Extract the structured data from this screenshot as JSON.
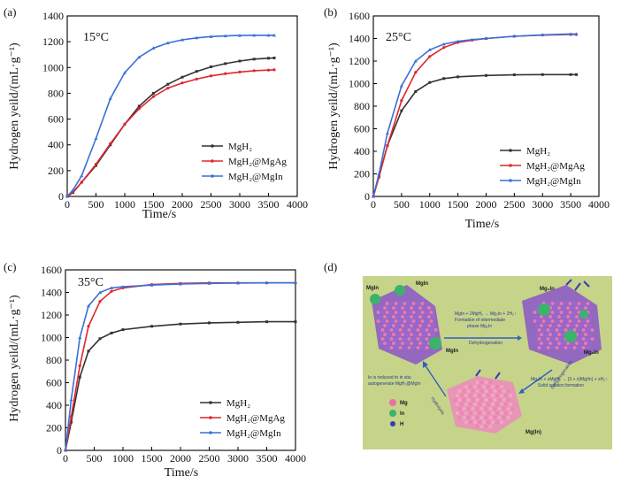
{
  "colors": {
    "mgh2": "#333333",
    "mgag": "#e0262c",
    "mgin": "#3a6fd8",
    "diagram_bg": "#c6d48a"
  },
  "chart_data": [
    {
      "type": "line",
      "panel": "(a)",
      "annotation": "15°C",
      "xlabel": "Time/s",
      "ylabel": "Hydrogen yeild/(mL·g⁻¹)",
      "xlim": [
        0,
        4000
      ],
      "ylim": [
        0,
        1400
      ],
      "xticks": [
        "0",
        "500",
        "1000",
        "1500",
        "2000",
        "2500",
        "3000",
        "3500",
        "4000"
      ],
      "yticks": [
        "0",
        "200",
        "400",
        "600",
        "800",
        "1000",
        "1200",
        "1400"
      ],
      "legend_position": "right-middle",
      "series": [
        {
          "name": "MgH₂",
          "color_key": "mgh2",
          "marker": "square",
          "x": [
            0,
            100,
            250,
            500,
            750,
            1000,
            1250,
            1500,
            1750,
            2000,
            2250,
            2500,
            2750,
            3000,
            3250,
            3500,
            3600
          ],
          "y": [
            0,
            30,
            110,
            240,
            400,
            560,
            700,
            800,
            870,
            925,
            970,
            1005,
            1030,
            1050,
            1065,
            1072,
            1074
          ]
        },
        {
          "name": "MgH₂@MgAg",
          "color_key": "mgag",
          "marker": "circle",
          "x": [
            0,
            100,
            250,
            500,
            750,
            1000,
            1250,
            1500,
            1750,
            2000,
            2250,
            2500,
            2750,
            3000,
            3250,
            3500,
            3600
          ],
          "y": [
            0,
            35,
            110,
            250,
            410,
            560,
            680,
            775,
            840,
            880,
            910,
            935,
            952,
            965,
            975,
            980,
            982
          ]
        },
        {
          "name": "MgH₂@MgIn",
          "color_key": "mgin",
          "marker": "triangle",
          "x": [
            0,
            100,
            250,
            500,
            750,
            1000,
            1250,
            1500,
            1750,
            2000,
            2250,
            2500,
            2750,
            3000,
            3250,
            3500,
            3600
          ],
          "y": [
            0,
            50,
            160,
            450,
            760,
            960,
            1080,
            1150,
            1190,
            1215,
            1230,
            1240,
            1245,
            1248,
            1250,
            1250,
            1250
          ]
        }
      ]
    },
    {
      "type": "line",
      "panel": "(b)",
      "annotation": "25°C",
      "xlabel": "Time/s",
      "ylabel": "Hydrogen yeild/(mL·g⁻¹)",
      "xlim": [
        0,
        4000
      ],
      "ylim": [
        0,
        1600
      ],
      "xticks": [
        "0",
        "500",
        "1000",
        "1500",
        "2000",
        "2500",
        "3000",
        "3500",
        "4000"
      ],
      "yticks": [
        "0",
        "200",
        "400",
        "600",
        "800",
        "1000",
        "1200",
        "1400",
        "1600"
      ],
      "legend_position": "right-middle",
      "series": [
        {
          "name": "MgH₂",
          "color_key": "mgh2",
          "marker": "square",
          "x": [
            0,
            100,
            250,
            500,
            750,
            1000,
            1250,
            1500,
            2000,
            2500,
            3000,
            3500,
            3600
          ],
          "y": [
            0,
            180,
            450,
            760,
            930,
            1010,
            1045,
            1060,
            1072,
            1078,
            1080,
            1080,
            1080
          ]
        },
        {
          "name": "MgH₂@MgAg",
          "color_key": "mgag",
          "marker": "circle",
          "x": [
            0,
            100,
            250,
            500,
            750,
            1000,
            1250,
            1500,
            1750,
            2000,
            2500,
            3000,
            3500,
            3600
          ],
          "y": [
            0,
            170,
            450,
            850,
            1100,
            1240,
            1320,
            1365,
            1385,
            1400,
            1420,
            1430,
            1435,
            1435
          ]
        },
        {
          "name": "MgH₂@MgIn",
          "color_key": "mgin",
          "marker": "triangle",
          "x": [
            0,
            100,
            250,
            500,
            750,
            1000,
            1250,
            1500,
            1750,
            2000,
            2500,
            3000,
            3500,
            3600
          ],
          "y": [
            0,
            200,
            560,
            980,
            1200,
            1300,
            1350,
            1375,
            1390,
            1400,
            1420,
            1432,
            1440,
            1440
          ]
        }
      ]
    },
    {
      "type": "line",
      "panel": "(c)",
      "annotation": "35°C",
      "xlabel": "Time/s",
      "ylabel": "Hydrogen yeild/(mL·g⁻¹)",
      "xlim": [
        0,
        4000
      ],
      "ylim": [
        0,
        1600
      ],
      "xticks": [
        "0",
        "500",
        "1000",
        "1500",
        "2000",
        "2500",
        "3000",
        "3500",
        "4000"
      ],
      "yticks": [
        "0",
        "200",
        "400",
        "600",
        "800",
        "1000",
        "1200",
        "1400",
        "1600"
      ],
      "legend_position": "right-bottom",
      "series": [
        {
          "name": "MgH₂",
          "color_key": "mgh2",
          "marker": "square",
          "x": [
            0,
            100,
            250,
            400,
            600,
            800,
            1000,
            1500,
            2000,
            2500,
            3000,
            3500,
            4000
          ],
          "y": [
            0,
            250,
            650,
            880,
            990,
            1040,
            1070,
            1100,
            1120,
            1130,
            1135,
            1140,
            1140
          ]
        },
        {
          "name": "MgH₂@MgAg",
          "color_key": "mgag",
          "marker": "circle",
          "x": [
            0,
            100,
            250,
            400,
            600,
            800,
            1000,
            1500,
            2000,
            2500,
            3000,
            3500,
            4000
          ],
          "y": [
            0,
            300,
            750,
            1100,
            1320,
            1410,
            1440,
            1470,
            1480,
            1485,
            1485,
            1485,
            1485
          ]
        },
        {
          "name": "MgH₂@MgIn",
          "color_key": "mgin",
          "marker": "triangle",
          "x": [
            0,
            100,
            250,
            400,
            600,
            800,
            1000,
            1500,
            2000,
            2500,
            3000,
            3500,
            4000
          ],
          "y": [
            0,
            450,
            1000,
            1280,
            1400,
            1440,
            1450,
            1465,
            1475,
            1480,
            1483,
            1485,
            1485
          ]
        }
      ]
    }
  ],
  "panel_d": {
    "label": "(d)",
    "top_left_labels": [
      "MgIn",
      "MgIn"
    ],
    "top_left_bottom_label": "MgIn",
    "top_right_labels": [
      "Mg₃In",
      "Mg₃In"
    ],
    "bottom_label": "Mg(In)",
    "arrow_top_text": [
      "MgIn + 2MgH₂ → Mg₃In + 2H₂↑",
      "Formation of intermediate",
      "phase Mg₃In"
    ],
    "arrow_top_under": "Dehydrogenation",
    "arrow_right_label": "Dehydrogenation",
    "arrow_right_text": [
      "Mg₃In + xMgH₂ → (3 + x)Mg(In) + xH₂↑",
      "Solid solution formation"
    ],
    "arrow_left_label": "Hydrolysis",
    "arrow_left_text": [
      "In is reduced to in situ",
      "autogenerate MgH₂@MgIn"
    ],
    "legend": [
      "Mg",
      "In",
      "H"
    ]
  }
}
